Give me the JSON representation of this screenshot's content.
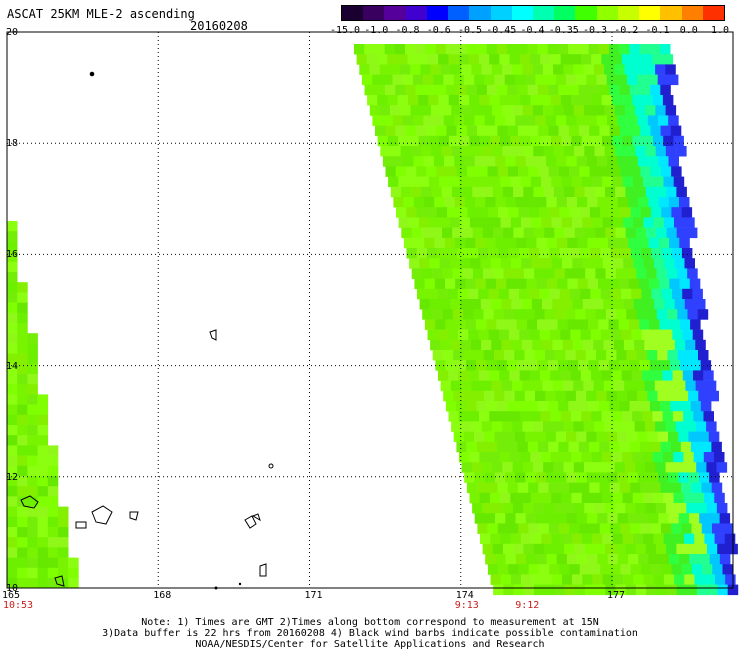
{
  "title": "ASCAT 25KM MLE-2 ascending",
  "date": "20160208",
  "colorbar": {
    "labels": [
      "-15.0",
      "-1.0",
      "-0.8",
      "-0.6",
      "-0.5",
      "-0.45",
      "-0.4",
      "-0.35",
      "-0.3",
      "-0.2",
      "-0.1",
      "0.0",
      "1.0"
    ],
    "colors": [
      "#1a0030",
      "#3a0060",
      "#55009a",
      "#4000d0",
      "#0000ff",
      "#0060ff",
      "#00a0ff",
      "#00d0ff",
      "#00ffff",
      "#00ffb0",
      "#00ff60",
      "#40ff00",
      "#90ff00",
      "#c8ff00",
      "#ffff00",
      "#ffc000",
      "#ff8000",
      "#ff3000"
    ]
  },
  "axes": {
    "lat_labels": [
      "20",
      "18",
      "16",
      "14",
      "12",
      "10"
    ],
    "lon_labels": [
      "165",
      "168",
      "171",
      "174",
      "177"
    ],
    "lat_range": [
      10,
      20
    ],
    "lon_range": [
      165,
      179.4
    ]
  },
  "time_labels": [
    {
      "text": "10:53",
      "lon": 165.1
    },
    {
      "text": "9:13",
      "lon": 174.0
    },
    {
      "text": "9:12",
      "lon": 175.2
    }
  ],
  "notes": [
    "Note: 1) Times are GMT 2)Times along bottom correspond to measurement at 15N",
    "3)Data buffer is 22 hrs from 20160208 4) Black wind barbs indicate possible contamination",
    "NOAA/NESDIS/Center for Satellite Applications and Research"
  ],
  "chart_data": {
    "type": "heatmap",
    "title": "ASCAT 25KM MLE-2 ascending",
    "date": "20160208",
    "xlabel": "",
    "ylabel": "",
    "xlim": [
      165,
      179.4
    ],
    "ylim": [
      10,
      20
    ],
    "colorscale_labels": [
      "-15.0",
      "-1.0",
      "-0.8",
      "-0.6",
      "-0.5",
      "-0.45",
      "-0.4",
      "-0.35",
      "-0.3",
      "-0.2",
      "-0.1",
      "0.0",
      "1.0"
    ],
    "grid": true,
    "swaths": [
      {
        "name_hidden": true,
        "edge_lon_top": [
          165,
          165.05
        ],
        "edge_lon_bottom": [
          165,
          166.4
        ],
        "lat_span": [
          10,
          16.6
        ]
      },
      {
        "name_hidden": true,
        "edge_lon_top": [
          172.0,
          178.6
        ],
        "edge_lon_bottom": [
          174.0,
          179.4
        ],
        "lat_span": [
          10,
          19.8
        ]
      }
    ]
  }
}
